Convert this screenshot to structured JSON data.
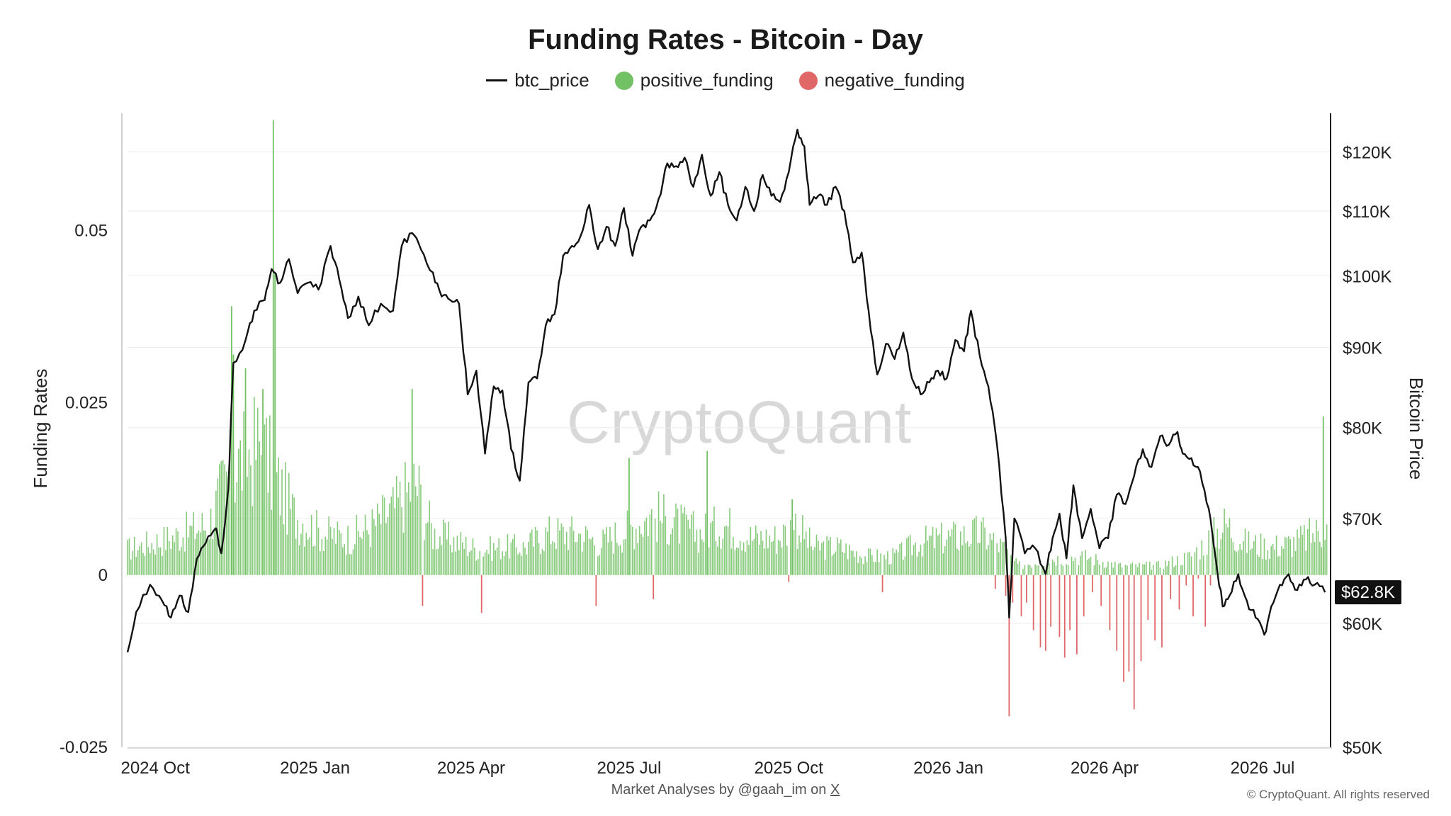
{
  "chart_data": {
    "type": "bar",
    "title": "Funding Rates - Bitcoin - Day",
    "legend": [
      "btc_price",
      "positive_funding",
      "negative_funding"
    ],
    "legend_position": "top-center",
    "colors": {
      "btc_price": "#111111",
      "positive_funding": "#72c164",
      "negative_funding": "#e06767"
    },
    "y_left": {
      "label": "Funding Rates",
      "ticks": [
        0.05,
        0.025,
        0,
        -0.025
      ],
      "tick_labels": [
        "0.05",
        "0.025",
        "0",
        "-0.025"
      ],
      "range": [
        -0.025,
        0.067
      ]
    },
    "y_right": {
      "label": "Bitcoin Price",
      "scale": "log",
      "ticks": [
        120000,
        110000,
        100000,
        90000,
        80000,
        70000,
        60000,
        50000
      ],
      "tick_labels": [
        "$120K",
        "$110K",
        "$100K",
        "$90K",
        "$80K",
        "$70K",
        "$60K",
        "$50K"
      ],
      "range": [
        50000,
        127000
      ]
    },
    "x_axis": {
      "range": [
        "2024-09-15",
        "2026-08-10"
      ],
      "ticks": [
        "2024-10-01",
        "2025-01-01",
        "2025-04-01",
        "2025-07-01",
        "2025-10-01",
        "2026-01-01",
        "2026-04-01",
        "2026-07-01"
      ],
      "tick_labels": [
        "2024 Oct",
        "2025 Jan",
        "2025 Apr",
        "2025 Jul",
        "2025 Oct",
        "2026 Jan",
        "2026 Apr",
        "2026 Jul"
      ]
    },
    "grid": true,
    "last_price_label": "$62.8K",
    "series": [
      {
        "name": "btc_price",
        "kind": "line",
        "axis": "right",
        "points": [
          [
            "2024-09-15",
            57500
          ],
          [
            "2024-09-20",
            61000
          ],
          [
            "2024-09-28",
            63500
          ],
          [
            "2024-10-05",
            62000
          ],
          [
            "2024-10-10",
            60500
          ],
          [
            "2024-10-15",
            62500
          ],
          [
            "2024-10-20",
            61000
          ],
          [
            "2024-10-25",
            66000
          ],
          [
            "2024-10-30",
            67500
          ],
          [
            "2024-11-05",
            69000
          ],
          [
            "2024-11-08",
            66500
          ],
          [
            "2024-11-12",
            73000
          ],
          [
            "2024-11-15",
            88000
          ],
          [
            "2024-11-22",
            91000
          ],
          [
            "2024-11-27",
            95000
          ],
          [
            "2024-12-03",
            96500
          ],
          [
            "2024-12-07",
            101000
          ],
          [
            "2024-12-12",
            99000
          ],
          [
            "2024-12-17",
            102500
          ],
          [
            "2024-12-22",
            97500
          ],
          [
            "2024-12-28",
            99000
          ],
          [
            "2025-01-03",
            98000
          ],
          [
            "2025-01-10",
            104500
          ],
          [
            "2025-01-15",
            99500
          ],
          [
            "2025-01-20",
            94000
          ],
          [
            "2025-01-26",
            97000
          ],
          [
            "2025-02-01",
            93000
          ],
          [
            "2025-02-08",
            96000
          ],
          [
            "2025-02-15",
            95000
          ],
          [
            "2025-02-20",
            104500
          ],
          [
            "2025-02-26",
            106500
          ],
          [
            "2025-03-03",
            104000
          ],
          [
            "2025-03-10",
            100500
          ],
          [
            "2025-03-15",
            97000
          ],
          [
            "2025-03-20",
            96500
          ],
          [
            "2025-03-25",
            96000
          ],
          [
            "2025-03-30",
            84000
          ],
          [
            "2025-04-04",
            87000
          ],
          [
            "2025-04-09",
            77000
          ],
          [
            "2025-04-14",
            85000
          ],
          [
            "2025-04-19",
            84500
          ],
          [
            "2025-04-24",
            77500
          ],
          [
            "2025-04-29",
            74000
          ],
          [
            "2025-05-04",
            85500
          ],
          [
            "2025-05-09",
            86000
          ],
          [
            "2025-05-14",
            93000
          ],
          [
            "2025-05-19",
            94500
          ],
          [
            "2025-05-24",
            103000
          ],
          [
            "2025-05-29",
            104500
          ],
          [
            "2025-06-03",
            106000
          ],
          [
            "2025-06-08",
            111000
          ],
          [
            "2025-06-13",
            104000
          ],
          [
            "2025-06-18",
            107500
          ],
          [
            "2025-06-23",
            104500
          ],
          [
            "2025-06-28",
            110500
          ],
          [
            "2025-07-03",
            103000
          ],
          [
            "2025-07-08",
            107500
          ],
          [
            "2025-07-13",
            108500
          ],
          [
            "2025-07-18",
            112000
          ],
          [
            "2025-07-23",
            118000
          ],
          [
            "2025-07-28",
            117500
          ],
          [
            "2025-08-02",
            119000
          ],
          [
            "2025-08-07",
            114000
          ],
          [
            "2025-08-12",
            119500
          ],
          [
            "2025-08-17",
            112500
          ],
          [
            "2025-08-22",
            116500
          ],
          [
            "2025-08-27",
            111000
          ],
          [
            "2025-09-01",
            108500
          ],
          [
            "2025-09-06",
            114000
          ],
          [
            "2025-09-11",
            110000
          ],
          [
            "2025-09-16",
            116000
          ],
          [
            "2025-09-21",
            112500
          ],
          [
            "2025-09-26",
            111500
          ],
          [
            "2025-10-01",
            116500
          ],
          [
            "2025-10-06",
            124000
          ],
          [
            "2025-10-10",
            121000
          ],
          [
            "2025-10-13",
            111000
          ],
          [
            "2025-10-18",
            112500
          ],
          [
            "2025-10-23",
            111000
          ],
          [
            "2025-10-28",
            114000
          ],
          [
            "2025-11-02",
            110000
          ],
          [
            "2025-11-07",
            102000
          ],
          [
            "2025-11-12",
            103500
          ],
          [
            "2025-11-16",
            95000
          ],
          [
            "2025-11-21",
            86500
          ],
          [
            "2025-11-26",
            90500
          ],
          [
            "2025-12-01",
            88500
          ],
          [
            "2025-12-06",
            92000
          ],
          [
            "2025-12-11",
            86000
          ],
          [
            "2025-12-16",
            84000
          ],
          [
            "2025-12-21",
            85500
          ],
          [
            "2025-12-26",
            87000
          ],
          [
            "2025-12-31",
            86000
          ],
          [
            "2026-01-05",
            91000
          ],
          [
            "2026-01-10",
            89500
          ],
          [
            "2026-01-14",
            95000
          ],
          [
            "2026-01-19",
            89000
          ],
          [
            "2026-01-24",
            85000
          ],
          [
            "2026-01-29",
            78000
          ],
          [
            "2026-02-03",
            68000
          ],
          [
            "2026-02-05",
            60500
          ],
          [
            "2026-02-08",
            70000
          ],
          [
            "2026-02-14",
            66500
          ],
          [
            "2026-02-20",
            67000
          ],
          [
            "2026-02-26",
            64500
          ],
          [
            "2026-03-02",
            68000
          ],
          [
            "2026-03-06",
            70500
          ],
          [
            "2026-03-10",
            66000
          ],
          [
            "2026-03-14",
            73500
          ],
          [
            "2026-03-19",
            68000
          ],
          [
            "2026-03-24",
            71000
          ],
          [
            "2026-03-29",
            67000
          ],
          [
            "2026-04-03",
            68000
          ],
          [
            "2026-04-08",
            72500
          ],
          [
            "2026-04-13",
            71500
          ],
          [
            "2026-04-18",
            74500
          ],
          [
            "2026-04-23",
            77500
          ],
          [
            "2026-04-28",
            75500
          ],
          [
            "2026-05-03",
            79000
          ],
          [
            "2026-05-08",
            78000
          ],
          [
            "2026-05-13",
            79500
          ],
          [
            "2026-05-16",
            77000
          ],
          [
            "2026-05-21",
            76500
          ],
          [
            "2026-05-26",
            75000
          ],
          [
            "2026-05-31",
            71000
          ],
          [
            "2026-06-04",
            66000
          ],
          [
            "2026-06-08",
            61500
          ],
          [
            "2026-06-12",
            62500
          ],
          [
            "2026-06-17",
            64500
          ],
          [
            "2026-06-22",
            62000
          ],
          [
            "2026-06-27",
            60500
          ],
          [
            "2026-07-02",
            59000
          ],
          [
            "2026-07-06",
            61500
          ],
          [
            "2026-07-11",
            63500
          ],
          [
            "2026-07-16",
            64500
          ],
          [
            "2026-07-21",
            63000
          ],
          [
            "2026-07-26",
            64000
          ],
          [
            "2026-07-31",
            63500
          ],
          [
            "2026-08-06",
            62800
          ]
        ]
      },
      {
        "name": "positive_funding",
        "kind": "bar",
        "axis": "left",
        "envelope": [
          [
            "2024-09-15",
            0.0055
          ],
          [
            "2024-10-10",
            0.008
          ],
          [
            "2024-10-25",
            0.01
          ],
          [
            "2024-11-01",
            0.011
          ],
          [
            "2024-11-10",
            0.02
          ],
          [
            "2024-11-20",
            0.025
          ],
          [
            "2024-12-01",
            0.028
          ],
          [
            "2024-12-10",
            0.02
          ],
          [
            "2024-12-20",
            0.013
          ],
          [
            "2025-01-05",
            0.009
          ],
          [
            "2025-01-20",
            0.008
          ],
          [
            "2025-02-01",
            0.01
          ],
          [
            "2025-02-15",
            0.014
          ],
          [
            "2025-02-28",
            0.02
          ],
          [
            "2025-03-10",
            0.009
          ],
          [
            "2025-03-25",
            0.007
          ],
          [
            "2025-04-05",
            0.0055
          ],
          [
            "2025-04-20",
            0.006
          ],
          [
            "2025-05-01",
            0.006
          ],
          [
            "2025-05-15",
            0.009
          ],
          [
            "2025-06-01",
            0.009
          ],
          [
            "2025-06-15",
            0.007
          ],
          [
            "2025-07-01",
            0.01
          ],
          [
            "2025-07-15",
            0.013
          ],
          [
            "2025-07-28",
            0.011
          ],
          [
            "2025-08-10",
            0.009
          ],
          [
            "2025-08-25",
            0.011
          ],
          [
            "2025-09-10",
            0.008
          ],
          [
            "2025-09-25",
            0.008
          ],
          [
            "2025-10-05",
            0.011
          ],
          [
            "2025-10-15",
            0.006
          ],
          [
            "2025-10-30",
            0.006
          ],
          [
            "2025-11-15",
            0.004
          ],
          [
            "2025-12-01",
            0.004
          ],
          [
            "2025-12-15",
            0.007
          ],
          [
            "2026-01-01",
            0.008
          ],
          [
            "2026-01-20",
            0.009
          ],
          [
            "2026-02-01",
            0.006
          ],
          [
            "2026-02-10",
            0.002
          ],
          [
            "2026-03-01",
            0.0035
          ],
          [
            "2026-03-20",
            0.004
          ],
          [
            "2026-04-10",
            0.002
          ],
          [
            "2026-05-01",
            0.002
          ],
          [
            "2026-05-20",
            0.004
          ],
          [
            "2026-06-01",
            0.008
          ],
          [
            "2026-06-10",
            0.011
          ],
          [
            "2026-06-20",
            0.007
          ],
          [
            "2026-07-05",
            0.006
          ],
          [
            "2026-07-20",
            0.007
          ],
          [
            "2026-08-06",
            0.01
          ]
        ],
        "spikes": [
          [
            "2024-11-14",
            0.039
          ],
          [
            "2024-11-15",
            0.032
          ],
          [
            "2024-11-22",
            0.03
          ],
          [
            "2024-12-02",
            0.027
          ],
          [
            "2024-12-08",
            0.066
          ],
          [
            "2024-12-09",
            0.044
          ],
          [
            "2025-02-26",
            0.027
          ],
          [
            "2025-07-01",
            0.017
          ],
          [
            "2025-08-15",
            0.018
          ],
          [
            "2025-10-03",
            0.011
          ],
          [
            "2026-08-05",
            0.023
          ]
        ]
      },
      {
        "name": "negative_funding",
        "kind": "bar",
        "axis": "left",
        "values": [
          [
            "2025-03-04",
            -0.0045
          ],
          [
            "2025-04-07",
            -0.0055
          ],
          [
            "2025-06-12",
            -0.0045
          ],
          [
            "2025-07-15",
            -0.0035
          ],
          [
            "2025-10-01",
            -0.001
          ],
          [
            "2025-11-24",
            -0.0025
          ],
          [
            "2026-01-28",
            -0.002
          ],
          [
            "2026-02-03",
            -0.003
          ],
          [
            "2026-02-05",
            -0.0205
          ],
          [
            "2026-02-07",
            -0.004
          ],
          [
            "2026-02-12",
            -0.006
          ],
          [
            "2026-02-15",
            -0.004
          ],
          [
            "2026-02-19",
            -0.008
          ],
          [
            "2026-02-23",
            -0.0105
          ],
          [
            "2026-02-26",
            -0.011
          ],
          [
            "2026-03-01",
            -0.0075
          ],
          [
            "2026-03-06",
            -0.009
          ],
          [
            "2026-03-09",
            -0.012
          ],
          [
            "2026-03-12",
            -0.008
          ],
          [
            "2026-03-16",
            -0.0115
          ],
          [
            "2026-03-20",
            -0.006
          ],
          [
            "2026-03-25",
            -0.0025
          ],
          [
            "2026-03-30",
            -0.0045
          ],
          [
            "2026-04-04",
            -0.008
          ],
          [
            "2026-04-08",
            -0.011
          ],
          [
            "2026-04-12",
            -0.0155
          ],
          [
            "2026-04-15",
            -0.014
          ],
          [
            "2026-04-18",
            -0.0195
          ],
          [
            "2026-04-22",
            -0.0125
          ],
          [
            "2026-04-26",
            -0.0065
          ],
          [
            "2026-04-30",
            -0.0095
          ],
          [
            "2026-05-04",
            -0.0105
          ],
          [
            "2026-05-09",
            -0.0035
          ],
          [
            "2026-05-14",
            -0.005
          ],
          [
            "2026-05-18",
            -0.0015
          ],
          [
            "2026-05-22",
            -0.006
          ],
          [
            "2026-05-25",
            -0.0005
          ],
          [
            "2026-05-29",
            -0.0075
          ],
          [
            "2026-06-01",
            -0.0015
          ]
        ]
      }
    ]
  },
  "credit": {
    "prefix": "Market Analyses by @gaah_im on ",
    "link": "X"
  },
  "copyright": "© CryptoQuant. All rights reserved",
  "watermark": "CryptoQuant"
}
